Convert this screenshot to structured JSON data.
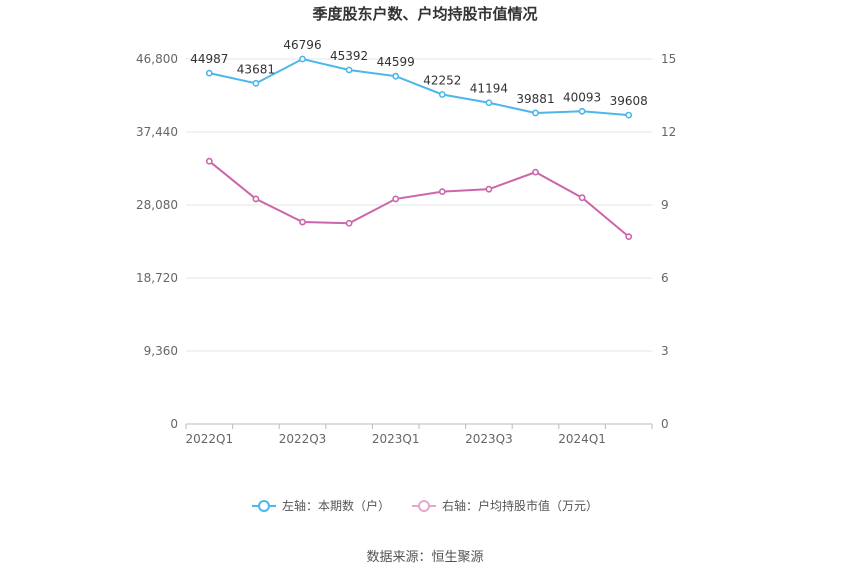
{
  "chart_data": {
    "type": "line",
    "title": "季度股东户数、户均持股市值情况",
    "categories": [
      "2022Q1",
      "2022Q2",
      "2022Q3",
      "2022Q4",
      "2023Q1",
      "2023Q2",
      "2023Q3",
      "2023Q4",
      "2024Q1",
      "2024Q2"
    ],
    "x_tick_labels": [
      "2022Q1",
      "",
      "2022Q3",
      "",
      "2023Q1",
      "",
      "2023Q3",
      "",
      "2024Q1",
      ""
    ],
    "left_axis": {
      "ylim": [
        0,
        46800
      ],
      "ticks": [
        "0",
        "9,360",
        "18,720",
        "28,080",
        "37,440",
        "46,800"
      ]
    },
    "right_axis": {
      "ylim": [
        0,
        15
      ],
      "ticks": [
        "0",
        "3",
        "6",
        "9",
        "12",
        "15"
      ]
    },
    "series": [
      {
        "name": "左轴：本期数（户）",
        "axis": "left",
        "color": "#4db6ea",
        "values": [
          44987,
          43681,
          46796,
          45392,
          44599,
          42252,
          41194,
          39881,
          40093,
          39608
        ],
        "labels": [
          "44987",
          "43681",
          "46796",
          "45392",
          "44599",
          "42252",
          "41194",
          "39881",
          "40093",
          "39608"
        ]
      },
      {
        "name": "右轴：户均持股市值（万元）",
        "axis": "right",
        "color": "#cc66aa",
        "values": [
          10.8,
          9.25,
          8.3,
          8.25,
          9.25,
          9.55,
          9.65,
          10.35,
          9.3,
          7.7
        ]
      }
    ],
    "grid": true,
    "legend": "bottom-center",
    "source": "数据来源：恒生聚源"
  }
}
